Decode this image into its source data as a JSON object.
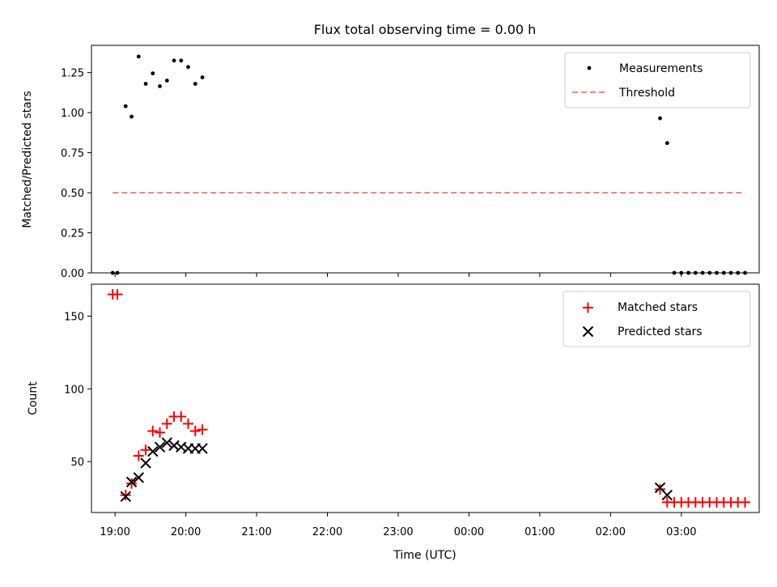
{
  "figure": {
    "title": "Flux total observing time = 0.00 h",
    "xlabel": "Time (UTC)"
  },
  "chart_data": [
    {
      "type": "scatter",
      "panel": "top",
      "ylabel": "Matched/Predicted stars",
      "xlim": [
        "18:40",
        "04:06"
      ],
      "ylim": [
        0.0,
        1.42
      ],
      "y_ticks": [
        "0.00",
        "0.25",
        "0.50",
        "0.75",
        "1.00",
        "1.25"
      ],
      "legend_position": "upper-right",
      "series": [
        {
          "name": "Measurements",
          "marker": "dot",
          "color": "#000000",
          "points": [
            [
              "18:58",
              0.0
            ],
            [
              "19:02",
              0.0
            ],
            [
              "19:09",
              1.04
            ],
            [
              "19:14",
              0.975
            ],
            [
              "19:20",
              1.35
            ],
            [
              "19:26",
              1.18
            ],
            [
              "19:32",
              1.245
            ],
            [
              "19:38",
              1.165
            ],
            [
              "19:44",
              1.2
            ],
            [
              "19:50",
              1.325
            ],
            [
              "19:56",
              1.325
            ],
            [
              "20:02",
              1.285
            ],
            [
              "20:08",
              1.18
            ],
            [
              "20:14",
              1.22
            ],
            [
              "02:42",
              0.965
            ],
            [
              "02:48",
              0.81
            ],
            [
              "02:54",
              0.0
            ],
            [
              "03:00",
              0.0
            ],
            [
              "03:06",
              0.0
            ],
            [
              "03:12",
              0.0
            ],
            [
              "03:18",
              0.0
            ],
            [
              "03:24",
              0.0
            ],
            [
              "03:30",
              0.0
            ],
            [
              "03:36",
              0.0
            ],
            [
              "03:42",
              0.0
            ],
            [
              "03:48",
              0.0
            ],
            [
              "03:54",
              0.0
            ]
          ]
        },
        {
          "name": "Threshold",
          "marker": "dashed-line",
          "color": "#ff7f7f",
          "points": [
            [
              "18:58",
              0.5
            ],
            [
              "03:54",
              0.5
            ]
          ]
        }
      ]
    },
    {
      "type": "scatter",
      "panel": "bottom",
      "ylabel": "Count",
      "xlim": [
        "18:40",
        "04:06"
      ],
      "ylim": [
        15,
        172
      ],
      "y_ticks": [
        "50",
        "100",
        "150"
      ],
      "x_ticks": [
        "19:00",
        "20:00",
        "21:00",
        "22:00",
        "23:00",
        "00:00",
        "01:00",
        "02:00",
        "03:00"
      ],
      "legend_position": "upper-right",
      "series": [
        {
          "name": "Matched stars",
          "marker": "plus",
          "color": "#ff0000",
          "points": [
            [
              "18:58",
              165
            ],
            [
              "19:02",
              165
            ],
            [
              "19:09",
              27
            ],
            [
              "19:14",
              35
            ],
            [
              "19:20",
              54
            ],
            [
              "19:26",
              58
            ],
            [
              "19:32",
              71
            ],
            [
              "19:38",
              70
            ],
            [
              "19:44",
              76
            ],
            [
              "19:50",
              81
            ],
            [
              "19:56",
              81
            ],
            [
              "20:02",
              76
            ],
            [
              "20:08",
              71
            ],
            [
              "20:14",
              72
            ],
            [
              "02:42",
              31
            ],
            [
              "02:48",
              22
            ],
            [
              "02:54",
              22
            ],
            [
              "03:00",
              22
            ],
            [
              "03:06",
              22
            ],
            [
              "03:12",
              22
            ],
            [
              "03:18",
              22
            ],
            [
              "03:24",
              22
            ],
            [
              "03:30",
              22
            ],
            [
              "03:36",
              22
            ],
            [
              "03:42",
              22
            ],
            [
              "03:48",
              22
            ],
            [
              "03:54",
              22
            ]
          ]
        },
        {
          "name": "Predicted stars",
          "marker": "x",
          "color": "#000000",
          "points": [
            [
              "19:09",
              26
            ],
            [
              "19:14",
              36
            ],
            [
              "19:20",
              39
            ],
            [
              "19:26",
              49
            ],
            [
              "19:32",
              57
            ],
            [
              "19:38",
              60
            ],
            [
              "19:44",
              63
            ],
            [
              "19:50",
              61
            ],
            [
              "19:56",
              60
            ],
            [
              "20:02",
              59
            ],
            [
              "20:08",
              59
            ],
            [
              "20:14",
              59
            ],
            [
              "02:42",
              32
            ],
            [
              "02:48",
              27
            ]
          ]
        }
      ]
    }
  ]
}
